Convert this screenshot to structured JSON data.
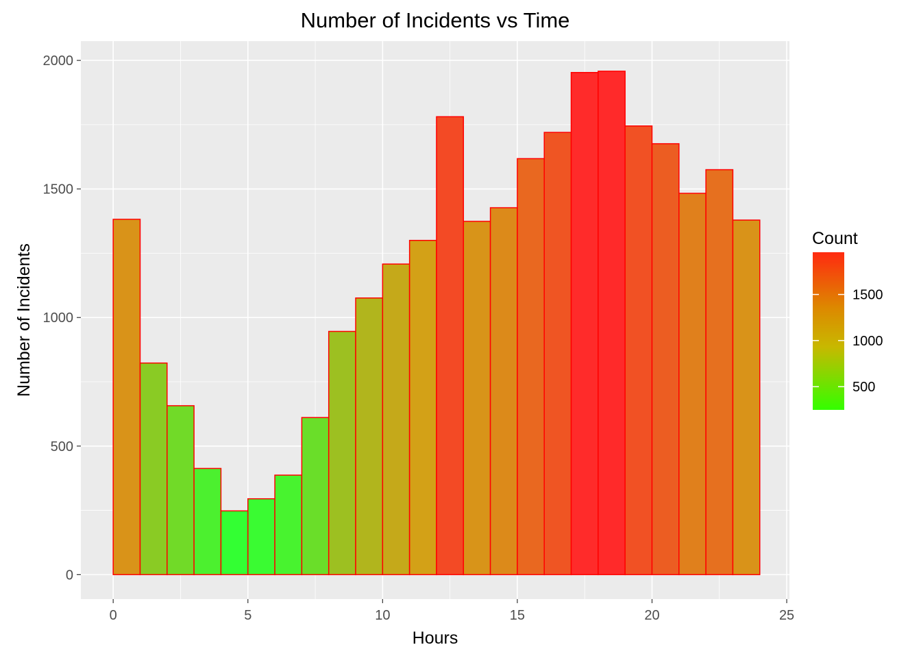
{
  "chart_data": {
    "type": "bar",
    "title": "Number of Incidents vs Time",
    "xlabel": "Hours",
    "ylabel": "Number of Incidents",
    "bin_width": 1,
    "bins_start": [
      0,
      1,
      2,
      3,
      4,
      5,
      6,
      7,
      8,
      9,
      10,
      11,
      12,
      13,
      14,
      15,
      16,
      17,
      18,
      19,
      20,
      21,
      22,
      23
    ],
    "values": [
      1382,
      823,
      657,
      413,
      248,
      295,
      387,
      611,
      946,
      1076,
      1208,
      1300,
      1781,
      1374,
      1427,
      1618,
      1720,
      1953,
      1958,
      1745,
      1676,
      1483,
      1575,
      1379
    ],
    "xlim": [
      -1.2,
      25.1
    ],
    "ylim": [
      -95,
      2075
    ],
    "x_ticks": [
      0,
      5,
      10,
      15,
      20,
      25
    ],
    "x_tick_labels": [
      "0",
      "5",
      "10",
      "15",
      "20",
      "25"
    ],
    "y_ticks": [
      0,
      500,
      1000,
      1500,
      2000
    ],
    "y_tick_labels": [
      "0",
      "500",
      "1000",
      "1500",
      "2000"
    ],
    "grid": true,
    "bar_outline_color": "#ff0000",
    "fill_scale": {
      "low_color": "#33ff33",
      "mid_color": "#d4a017",
      "high_color": "#ff2a2a",
      "domain": [
        248,
        1958
      ]
    },
    "legend": {
      "title": "Count",
      "position": "right",
      "ticks": [
        500,
        1000,
        1500
      ],
      "tick_labels": [
        "500",
        "1000",
        "1500"
      ]
    }
  }
}
